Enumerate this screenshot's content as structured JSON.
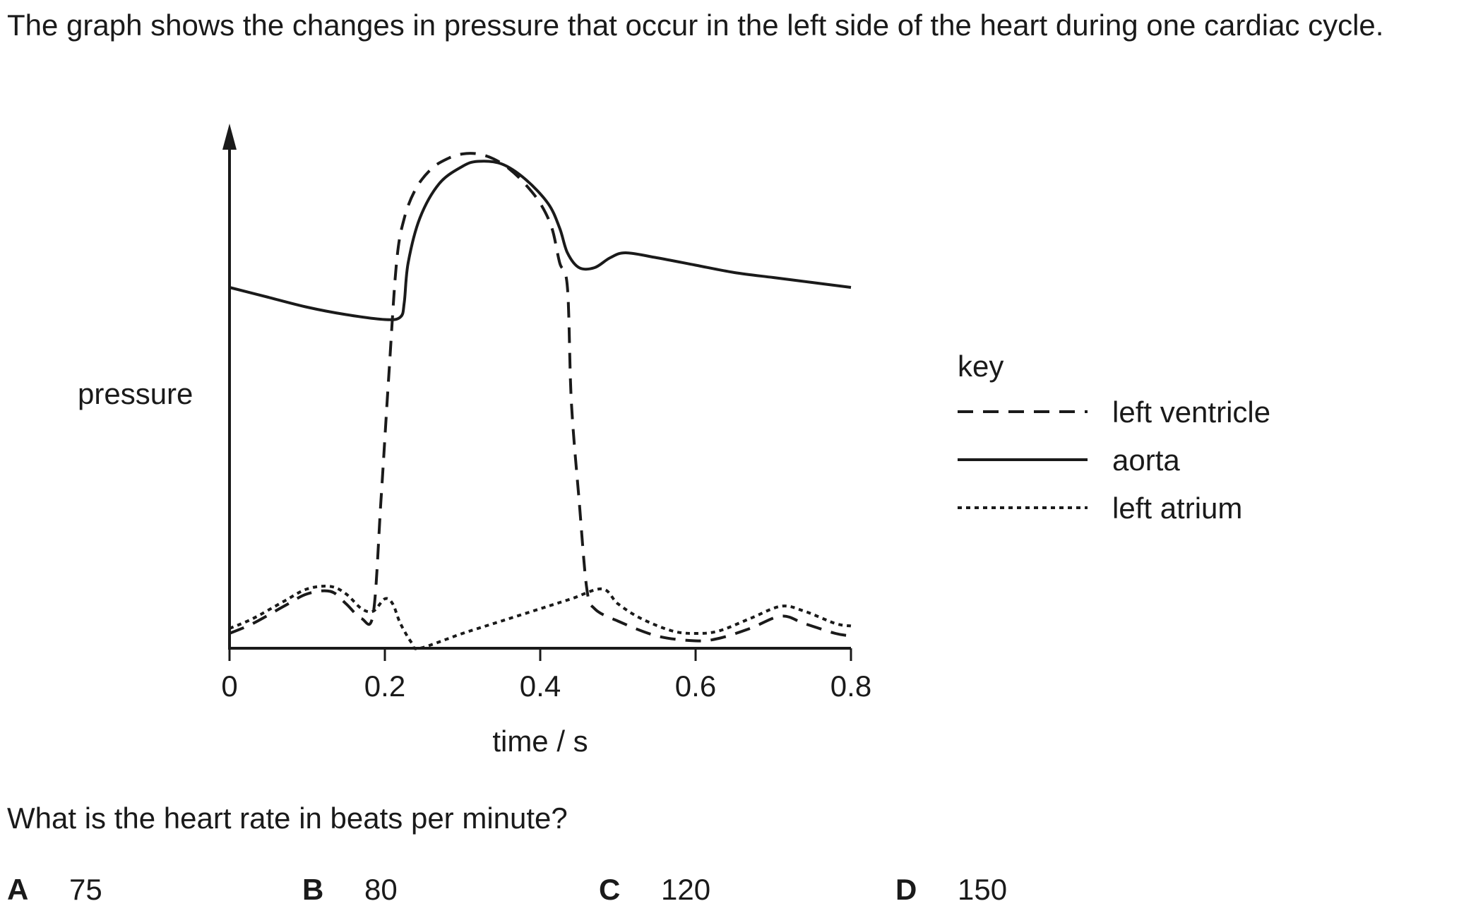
{
  "question": {
    "intro": "The graph shows the changes in pressure that occur in the left side of the heart during one cardiac cycle.",
    "prompt": "What is the heart rate in beats per minute?",
    "options": [
      {
        "letter": "A",
        "value": "75"
      },
      {
        "letter": "B",
        "value": "80"
      },
      {
        "letter": "C",
        "value": "120"
      },
      {
        "letter": "D",
        "value": "150"
      }
    ]
  },
  "chart_data": {
    "type": "line",
    "xlabel": "time / s",
    "ylabel": "pressure",
    "xlim": [
      0,
      0.8
    ],
    "x_ticks": [
      0,
      0.2,
      0.4,
      0.6,
      0.8
    ],
    "x_tick_labels": [
      "0",
      "0.2",
      "0.4",
      "0.6",
      "0.8"
    ],
    "ylim": [
      0,
      1
    ],
    "y_units_note": "relative (no numeric scale shown)",
    "grid": false,
    "legend_title": "key",
    "legend_position": "right",
    "series": [
      {
        "name": "left ventricle",
        "line_style": "dashed",
        "points": [
          [
            0,
            0.03
          ],
          [
            0.03,
            0.05
          ],
          [
            0.07,
            0.085
          ],
          [
            0.1,
            0.11
          ],
          [
            0.13,
            0.115
          ],
          [
            0.15,
            0.09
          ],
          [
            0.17,
            0.06
          ],
          [
            0.185,
            0.07
          ],
          [
            0.195,
            0.3
          ],
          [
            0.205,
            0.55
          ],
          [
            0.215,
            0.78
          ],
          [
            0.225,
            0.87
          ],
          [
            0.24,
            0.93
          ],
          [
            0.26,
            0.97
          ],
          [
            0.28,
            0.99
          ],
          [
            0.3,
            1.0
          ],
          [
            0.32,
            1.0
          ],
          [
            0.34,
            0.99
          ],
          [
            0.36,
            0.97
          ],
          [
            0.38,
            0.94
          ],
          [
            0.4,
            0.9
          ],
          [
            0.415,
            0.85
          ],
          [
            0.425,
            0.78
          ],
          [
            0.435,
            0.73
          ],
          [
            0.44,
            0.5
          ],
          [
            0.45,
            0.3
          ],
          [
            0.46,
            0.12
          ],
          [
            0.47,
            0.08
          ],
          [
            0.5,
            0.055
          ],
          [
            0.55,
            0.025
          ],
          [
            0.6,
            0.015
          ],
          [
            0.63,
            0.02
          ],
          [
            0.67,
            0.04
          ],
          [
            0.71,
            0.065
          ],
          [
            0.74,
            0.05
          ],
          [
            0.78,
            0.03
          ],
          [
            0.8,
            0.025
          ]
        ]
      },
      {
        "name": "aorta",
        "line_style": "solid",
        "points": [
          [
            0,
            0.73
          ],
          [
            0.05,
            0.71
          ],
          [
            0.1,
            0.69
          ],
          [
            0.15,
            0.675
          ],
          [
            0.2,
            0.665
          ],
          [
            0.22,
            0.67
          ],
          [
            0.225,
            0.7
          ],
          [
            0.23,
            0.78
          ],
          [
            0.245,
            0.87
          ],
          [
            0.27,
            0.94
          ],
          [
            0.3,
            0.975
          ],
          [
            0.32,
            0.985
          ],
          [
            0.35,
            0.98
          ],
          [
            0.38,
            0.95
          ],
          [
            0.41,
            0.9
          ],
          [
            0.425,
            0.85
          ],
          [
            0.435,
            0.8
          ],
          [
            0.45,
            0.77
          ],
          [
            0.47,
            0.77
          ],
          [
            0.49,
            0.79
          ],
          [
            0.51,
            0.8
          ],
          [
            0.55,
            0.79
          ],
          [
            0.6,
            0.775
          ],
          [
            0.65,
            0.76
          ],
          [
            0.7,
            0.75
          ],
          [
            0.75,
            0.74
          ],
          [
            0.8,
            0.73
          ]
        ]
      },
      {
        "name": "left atrium",
        "line_style": "dotted",
        "points": [
          [
            0,
            0.04
          ],
          [
            0.03,
            0.06
          ],
          [
            0.07,
            0.095
          ],
          [
            0.1,
            0.12
          ],
          [
            0.13,
            0.125
          ],
          [
            0.15,
            0.11
          ],
          [
            0.17,
            0.08
          ],
          [
            0.185,
            0.075
          ],
          [
            0.2,
            0.1
          ],
          [
            0.21,
            0.09
          ],
          [
            0.22,
            0.05
          ],
          [
            0.235,
            0.01
          ],
          [
            0.245,
            0.0
          ],
          [
            0.3,
            0.03
          ],
          [
            0.35,
            0.055
          ],
          [
            0.4,
            0.08
          ],
          [
            0.44,
            0.1
          ],
          [
            0.48,
            0.12
          ],
          [
            0.5,
            0.09
          ],
          [
            0.53,
            0.06
          ],
          [
            0.57,
            0.035
          ],
          [
            0.6,
            0.03
          ],
          [
            0.63,
            0.035
          ],
          [
            0.67,
            0.06
          ],
          [
            0.71,
            0.085
          ],
          [
            0.74,
            0.075
          ],
          [
            0.78,
            0.05
          ],
          [
            0.8,
            0.045
          ]
        ]
      }
    ]
  }
}
